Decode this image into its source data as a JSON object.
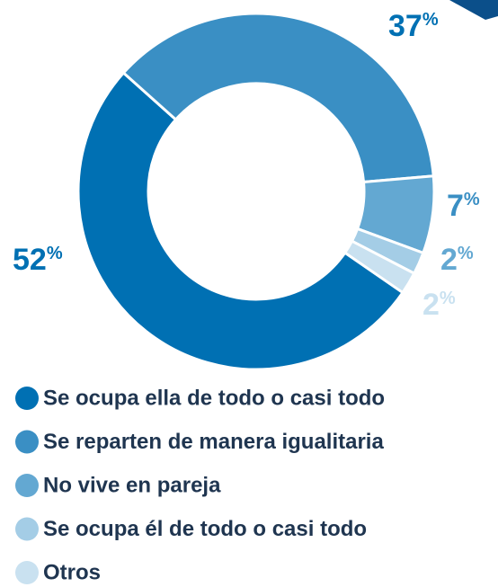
{
  "chart_data": {
    "type": "donut",
    "categories": [
      "Se ocupa ella de todo o casi todo",
      "Se reparten de manera igualitaria",
      "No vive en pareja",
      "Se ocupa él de todo o casi todo",
      "Otros"
    ],
    "values": [
      52,
      37,
      7,
      2,
      2
    ],
    "value_labels": [
      "52%",
      "37%",
      "7%",
      "2%",
      "2%"
    ],
    "colors": [
      "#0070b3",
      "#3a8fc4",
      "#63a8d2",
      "#a4cde6",
      "#c9e1f0"
    ]
  }
}
